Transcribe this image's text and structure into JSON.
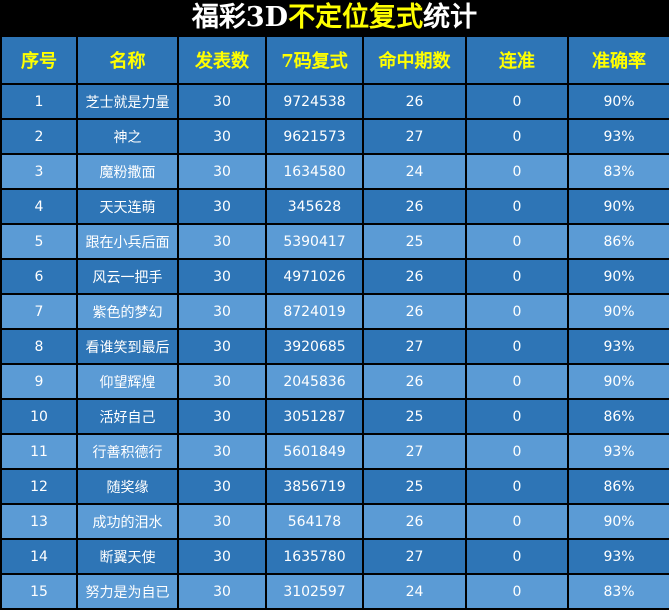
{
  "title": {
    "part1": "福彩3D",
    "part2": "不定位复式",
    "part3": "统计"
  },
  "colors": {
    "header_bg": "#2e75b6",
    "row_dark": "#2e75b6",
    "row_light": "#5b9bd5",
    "header_text": "#ffff00",
    "title_highlight": "#ffff00"
  },
  "columns": [
    "序号",
    "名称",
    "发表数",
    "7码复式",
    "命中期数",
    "连准",
    "准确率"
  ],
  "rows": [
    [
      "1",
      "芝士就是力量",
      "30",
      "9724538",
      "26",
      "0",
      "90%"
    ],
    [
      "2",
      "神之",
      "30",
      "9621573",
      "27",
      "0",
      "93%"
    ],
    [
      "3",
      "魔粉撒面",
      "30",
      "1634580",
      "24",
      "0",
      "83%"
    ],
    [
      "4",
      "天天连萌",
      "30",
      "345628",
      "26",
      "0",
      "90%"
    ],
    [
      "5",
      "跟在小兵后面",
      "30",
      "5390417",
      "25",
      "0",
      "86%"
    ],
    [
      "6",
      "风云一把手",
      "30",
      "4971026",
      "26",
      "0",
      "90%"
    ],
    [
      "7",
      "紫色的梦幻",
      "30",
      "8724019",
      "26",
      "0",
      "90%"
    ],
    [
      "8",
      "看谁笑到最后",
      "30",
      "3920685",
      "27",
      "0",
      "93%"
    ],
    [
      "9",
      "仰望辉煌",
      "30",
      "2045836",
      "26",
      "0",
      "90%"
    ],
    [
      "10",
      "活好自己",
      "30",
      "3051287",
      "25",
      "0",
      "86%"
    ],
    [
      "11",
      "行善积德行",
      "30",
      "5601849",
      "27",
      "0",
      "93%"
    ],
    [
      "12",
      "随奖缘",
      "30",
      "3856719",
      "25",
      "0",
      "86%"
    ],
    [
      "13",
      "成功的泪水",
      "30",
      "564178",
      "26",
      "0",
      "90%"
    ],
    [
      "14",
      "断翼天使",
      "30",
      "1635780",
      "27",
      "0",
      "93%"
    ],
    [
      "15",
      "努力是为自已",
      "30",
      "3102597",
      "24",
      "0",
      "83%"
    ]
  ]
}
